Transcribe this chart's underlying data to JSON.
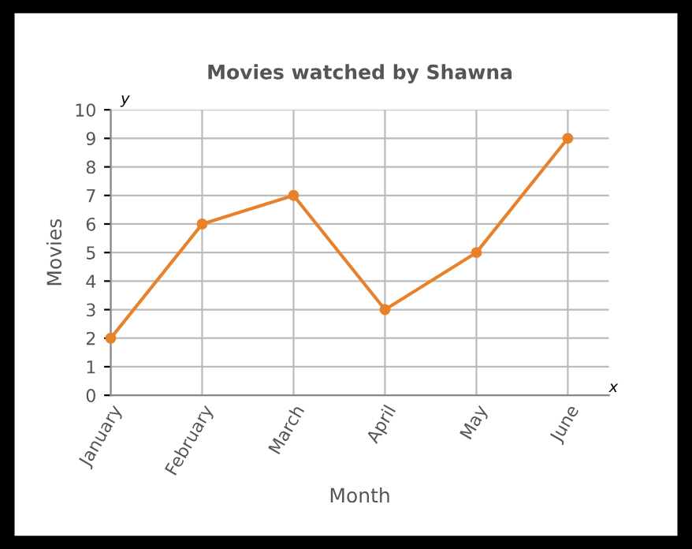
{
  "chart_data": {
    "type": "line",
    "title": "Movies watched by Shawna",
    "xlabel": "Month",
    "ylabel": "Movies",
    "categories": [
      "January",
      "February",
      "March",
      "April",
      "May",
      "June"
    ],
    "series": [
      {
        "color": "#e8822a",
        "values": [
          2,
          6,
          7,
          3,
          5,
          9
        ]
      }
    ],
    "ylim": [
      0,
      10
    ],
    "yticks": [
      0,
      1,
      2,
      3,
      4,
      5,
      6,
      7,
      8,
      9,
      10
    ],
    "grid": true,
    "marker": "circle",
    "line_style": "solid",
    "annotations": [
      "x",
      "y"
    ]
  }
}
